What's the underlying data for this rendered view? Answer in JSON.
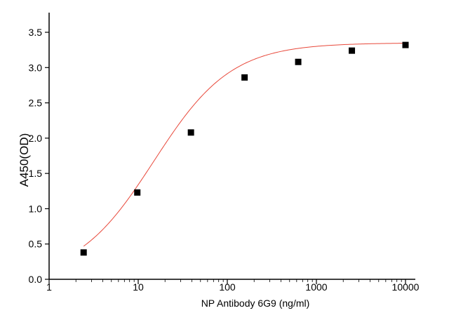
{
  "chart_data": {
    "type": "scatter",
    "title": "",
    "xlabel": "NP Antibody 6G9 (ng/ml)",
    "ylabel": "A450(OD)",
    "xscale": "log",
    "xlim": [
      1,
      10000
    ],
    "ylim": [
      0.0,
      3.5
    ],
    "xticks": [
      1,
      10,
      100,
      1000,
      10000
    ],
    "xtick_labels": [
      "1",
      "10",
      "100",
      "1000",
      "10000"
    ],
    "yticks": [
      0.0,
      0.5,
      1.0,
      1.5,
      2.0,
      2.5,
      3.0,
      3.5
    ],
    "ytick_labels": [
      "0.0",
      "0.5",
      "1.0",
      "1.5",
      "2.0",
      "2.5",
      "3.0",
      "3.5"
    ],
    "grid": false,
    "series": [
      {
        "marker": "square",
        "color": "#000000",
        "x": [
          2.44,
          9.77,
          39.06,
          156.25,
          625,
          2500,
          10000
        ],
        "y": [
          0.38,
          1.23,
          2.08,
          2.86,
          3.08,
          3.24,
          3.32
        ]
      }
    ],
    "fit_curve": {
      "color": "#e8483a",
      "model": "4PL",
      "bottom": 0.0,
      "top": 3.35,
      "ec50": 15,
      "hill": 1.0
    }
  }
}
